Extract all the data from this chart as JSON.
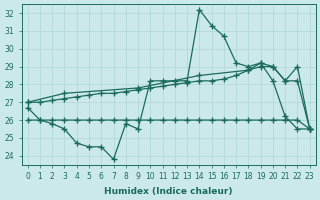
{
  "xlabel": "Humidex (Indice chaleur)",
  "xlim": [
    -0.5,
    23.5
  ],
  "ylim": [
    23.5,
    32.5
  ],
  "yticks": [
    24,
    25,
    26,
    27,
    28,
    29,
    30,
    31,
    32
  ],
  "xticks": [
    0,
    1,
    2,
    3,
    4,
    5,
    6,
    7,
    8,
    9,
    10,
    11,
    12,
    13,
    14,
    15,
    16,
    17,
    18,
    19,
    20,
    21,
    22,
    23
  ],
  "bg_color": "#cce9e9",
  "line_color": "#1a6b5a",
  "grid_color": "#aed4d4",
  "line1_x": [
    0,
    1,
    2,
    3,
    4,
    5,
    6,
    7,
    8,
    9,
    10,
    11,
    12,
    13,
    14,
    15,
    16,
    17,
    18,
    19,
    20,
    21,
    22,
    23
  ],
  "line1_y": [
    26.7,
    26.0,
    25.8,
    25.5,
    24.7,
    24.5,
    24.5,
    23.8,
    25.8,
    25.5,
    28.2,
    28.2,
    28.2,
    28.2,
    32.2,
    31.3,
    30.7,
    29.2,
    29.0,
    29.2,
    28.2,
    26.2,
    25.5,
    25.5
  ],
  "line2_x": [
    0,
    1,
    2,
    3,
    4,
    5,
    6,
    7,
    8,
    9,
    10,
    11,
    12,
    13,
    14,
    15,
    16,
    17,
    18,
    19,
    20,
    21,
    22,
    23
  ],
  "line2_y": [
    26.0,
    26.0,
    26.0,
    26.0,
    26.0,
    26.0,
    26.0,
    26.0,
    26.0,
    26.0,
    26.0,
    26.0,
    26.0,
    26.0,
    26.0,
    26.0,
    26.0,
    26.0,
    26.0,
    26.0,
    26.0,
    26.0,
    26.0,
    25.5
  ],
  "line3_x": [
    0,
    1,
    2,
    3,
    4,
    5,
    6,
    7,
    8,
    9,
    10,
    11,
    12,
    13,
    14,
    15,
    16,
    17,
    18,
    19,
    20,
    21,
    22,
    23
  ],
  "line3_y": [
    27.0,
    27.0,
    27.1,
    27.2,
    27.3,
    27.4,
    27.5,
    27.5,
    27.6,
    27.7,
    27.8,
    27.9,
    28.0,
    28.1,
    28.2,
    28.2,
    28.3,
    28.5,
    28.8,
    29.0,
    29.0,
    28.2,
    28.2,
    25.5
  ],
  "line4_x": [
    0,
    3,
    9,
    14,
    18,
    19,
    20,
    21,
    22,
    23
  ],
  "line4_y": [
    27.0,
    27.5,
    27.8,
    28.5,
    28.8,
    29.2,
    29.0,
    28.2,
    29.0,
    25.5
  ],
  "marker_size": 2.5,
  "linewidth": 0.9
}
